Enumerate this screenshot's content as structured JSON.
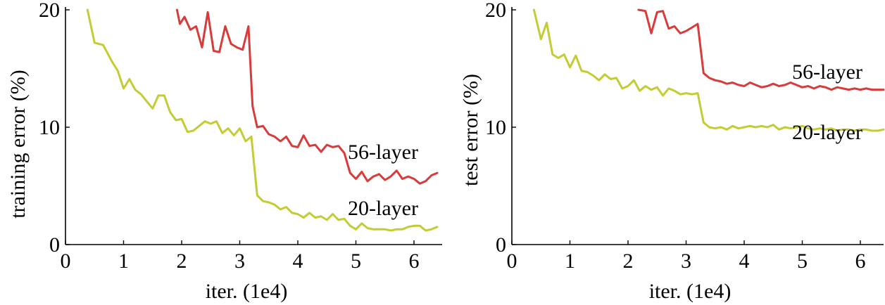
{
  "chart_data": [
    {
      "type": "line",
      "xlabel": "iter. (1e4)",
      "ylabel": "training error (%)",
      "xlim": [
        0,
        6.5
      ],
      "ylim": [
        0,
        20
      ],
      "x_ticks": [
        "0",
        "1",
        "2",
        "3",
        "4",
        "5",
        "6"
      ],
      "y_ticks": [
        "0",
        "10",
        "20"
      ],
      "grid": false,
      "series": [
        {
          "name": "56-layer",
          "color": "#d93a3a",
          "x": [
            1.92,
            1.97,
            2.05,
            2.15,
            2.25,
            2.35,
            2.45,
            2.55,
            2.65,
            2.75,
            2.85,
            2.95,
            3.05,
            3.15,
            3.22,
            3.3,
            3.4,
            3.5,
            3.6,
            3.7,
            3.8,
            3.9,
            4.0,
            4.1,
            4.2,
            4.3,
            4.4,
            4.5,
            4.6,
            4.7,
            4.8,
            4.9,
            5.0,
            5.1,
            5.2,
            5.3,
            5.4,
            5.5,
            5.6,
            5.7,
            5.8,
            5.9,
            6.0,
            6.1,
            6.2,
            6.3,
            6.4
          ],
          "values": [
            20.0,
            18.8,
            19.4,
            18.3,
            18.6,
            16.8,
            19.8,
            16.5,
            16.4,
            18.6,
            17.1,
            16.8,
            16.6,
            18.6,
            11.8,
            10.0,
            10.1,
            9.4,
            9.2,
            8.8,
            9.2,
            8.4,
            8.3,
            9.3,
            8.4,
            8.5,
            7.9,
            8.5,
            8.3,
            8.4,
            7.8,
            6.1,
            5.6,
            6.2,
            5.4,
            5.8,
            6.0,
            5.5,
            5.8,
            6.3,
            5.6,
            5.8,
            5.6,
            5.2,
            5.4,
            5.9,
            6.1
          ]
        },
        {
          "name": "20-layer",
          "color": "#c3cc33",
          "x": [
            0.38,
            0.5,
            0.65,
            0.8,
            0.9,
            1.0,
            1.1,
            1.2,
            1.3,
            1.4,
            1.5,
            1.6,
            1.7,
            1.8,
            1.9,
            2.0,
            2.1,
            2.2,
            2.3,
            2.4,
            2.5,
            2.6,
            2.7,
            2.8,
            2.9,
            3.0,
            3.1,
            3.2,
            3.3,
            3.4,
            3.5,
            3.6,
            3.7,
            3.8,
            3.9,
            4.0,
            4.1,
            4.2,
            4.3,
            4.4,
            4.5,
            4.6,
            4.7,
            4.8,
            4.9,
            5.0,
            5.1,
            5.2,
            5.3,
            5.4,
            5.5,
            5.6,
            5.7,
            5.8,
            5.9,
            6.0,
            6.1,
            6.2,
            6.3,
            6.4
          ],
          "values": [
            20.0,
            17.2,
            17.0,
            15.6,
            14.8,
            13.3,
            14.1,
            13.2,
            12.8,
            12.2,
            11.6,
            12.7,
            12.7,
            11.3,
            10.6,
            10.7,
            9.6,
            9.7,
            10.1,
            10.5,
            10.3,
            10.5,
            9.5,
            9.9,
            9.3,
            9.9,
            8.8,
            9.2,
            4.2,
            3.7,
            3.6,
            3.4,
            3.0,
            3.2,
            2.7,
            2.6,
            2.3,
            2.7,
            2.3,
            2.4,
            2.1,
            2.6,
            2.1,
            2.2,
            1.6,
            1.3,
            1.8,
            1.4,
            1.3,
            1.3,
            1.3,
            1.2,
            1.3,
            1.3,
            1.5,
            1.6,
            1.6,
            1.2,
            1.3,
            1.5
          ]
        }
      ]
    },
    {
      "type": "line",
      "xlabel": "iter. (1e4)",
      "ylabel": "test error (%)",
      "xlim": [
        0,
        6.5
      ],
      "ylim": [
        0,
        20
      ],
      "x_ticks": [
        "0",
        "1",
        "2",
        "3",
        "4",
        "5",
        "6"
      ],
      "y_ticks": [
        "0",
        "10",
        "20"
      ],
      "grid": false,
      "series": [
        {
          "name": "56-layer",
          "color": "#d93a3a",
          "x": [
            2.18,
            2.3,
            2.4,
            2.5,
            2.6,
            2.7,
            2.8,
            2.9,
            3.0,
            3.1,
            3.2,
            3.3,
            3.4,
            3.5,
            3.6,
            3.7,
            3.8,
            3.9,
            4.0,
            4.1,
            4.2,
            4.3,
            4.4,
            4.5,
            4.6,
            4.7,
            4.8,
            4.9,
            5.0,
            5.1,
            5.2,
            5.3,
            5.4,
            5.5,
            5.6,
            5.7,
            5.8,
            5.9,
            6.0,
            6.1,
            6.2,
            6.3,
            6.4
          ],
          "values": [
            20.0,
            19.9,
            18.0,
            19.8,
            19.9,
            18.4,
            18.6,
            18.0,
            18.2,
            18.5,
            18.8,
            14.6,
            14.2,
            14.0,
            13.9,
            13.7,
            13.8,
            13.6,
            13.5,
            13.8,
            13.6,
            13.4,
            13.5,
            13.7,
            13.5,
            13.6,
            13.8,
            13.6,
            13.4,
            13.5,
            13.3,
            13.5,
            13.4,
            13.2,
            13.4,
            13.3,
            13.2,
            13.3,
            13.2,
            13.3,
            13.2,
            13.2,
            13.2
          ]
        },
        {
          "name": "20-layer",
          "color": "#c3cc33",
          "x": [
            0.38,
            0.5,
            0.6,
            0.7,
            0.8,
            0.9,
            1.0,
            1.1,
            1.2,
            1.3,
            1.4,
            1.5,
            1.6,
            1.7,
            1.8,
            1.9,
            2.0,
            2.1,
            2.2,
            2.3,
            2.4,
            2.5,
            2.6,
            2.7,
            2.8,
            2.9,
            3.0,
            3.1,
            3.2,
            3.3,
            3.4,
            3.5,
            3.6,
            3.7,
            3.8,
            3.9,
            4.0,
            4.1,
            4.2,
            4.3,
            4.4,
            4.5,
            4.6,
            4.7,
            4.8,
            4.9,
            5.0,
            5.1,
            5.2,
            5.3,
            5.4,
            5.5,
            5.6,
            5.7,
            5.8,
            5.9,
            6.0,
            6.1,
            6.2,
            6.3,
            6.4
          ],
          "values": [
            20.0,
            17.5,
            18.9,
            16.2,
            15.9,
            16.2,
            15.1,
            16.1,
            14.8,
            14.7,
            14.4,
            14.0,
            14.5,
            14.1,
            14.2,
            13.3,
            13.5,
            14.0,
            13.1,
            13.5,
            13.2,
            13.4,
            12.7,
            13.3,
            13.1,
            12.8,
            12.9,
            12.8,
            12.9,
            10.4,
            10.0,
            9.9,
            10.0,
            9.8,
            10.1,
            9.9,
            10.0,
            10.1,
            10.0,
            10.1,
            10.0,
            10.2,
            9.8,
            10.0,
            9.9,
            10.0,
            10.1,
            9.9,
            9.8,
            9.9,
            9.8,
            9.9,
            9.7,
            9.8,
            9.8,
            9.7,
            9.8,
            9.8,
            9.7,
            9.7,
            9.8
          ]
        }
      ]
    }
  ]
}
